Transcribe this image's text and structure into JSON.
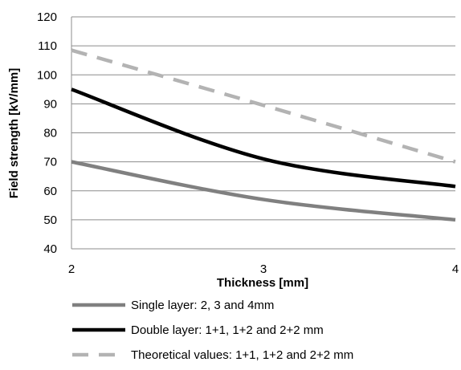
{
  "chart_data": {
    "type": "line",
    "xlabel": "Thickness [mm]",
    "ylabel": "Field strength [kV/mm]",
    "xlim": [
      2,
      4
    ],
    "ylim": [
      40,
      120
    ],
    "x_ticks": [
      2,
      3,
      4
    ],
    "y_ticks": [
      40,
      50,
      60,
      70,
      80,
      90,
      100,
      110,
      120
    ],
    "grid": "horizontal",
    "legend_position": "bottom",
    "series": [
      {
        "name": "Single layer: 2, 3 and 4mm",
        "color": "#808080",
        "style": "solid",
        "x": [
          2,
          3,
          4
        ],
        "y": [
          70,
          57,
          50
        ]
      },
      {
        "name": "Double layer: 1+1, 1+2 and 2+2 mm",
        "color": "#000000",
        "style": "solid",
        "x": [
          2,
          3,
          4
        ],
        "y": [
          95,
          71,
          61.5
        ]
      },
      {
        "name": "Theoretical values: 1+1, 1+2 and 2+2 mm",
        "color": "#b3b3b3",
        "style": "dashed",
        "x": [
          2,
          3,
          4
        ],
        "y": [
          108.5,
          89.5,
          70
        ]
      }
    ]
  }
}
